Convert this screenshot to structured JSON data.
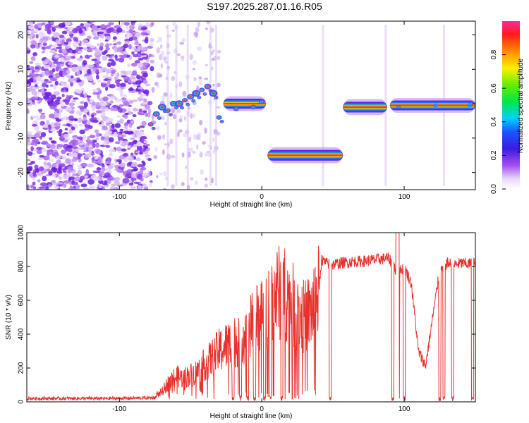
{
  "title": "S197.2025.287.01.16.R05",
  "chart_data": [
    {
      "type": "heatmap",
      "name": "spectrogram",
      "xlabel": "Height of straight line (km)",
      "ylabel": "Frequency (Hz)",
      "xlim": [
        -165,
        150
      ],
      "ylim": [
        -25,
        24
      ],
      "xticks": [
        -100,
        0,
        100
      ],
      "yticks": [
        -20,
        -10,
        0,
        10,
        20
      ],
      "features": [
        {
          "x": [
            -165,
            -80
          ],
          "type": "noise"
        },
        {
          "x": [
            -80,
            -30
          ],
          "points": [
            [
              -78,
              -6
            ],
            [
              -74,
              -3
            ],
            [
              -70,
              -1
            ],
            [
              -66,
              -2
            ],
            [
              -62,
              0
            ],
            [
              -58,
              0
            ],
            [
              -54,
              1
            ],
            [
              -50,
              2
            ],
            [
              -46,
              3
            ],
            [
              -42,
              4
            ],
            [
              -38,
              5
            ],
            [
              -34,
              3
            ],
            [
              -30,
              -4
            ]
          ]
        },
        {
          "x": [
            -27,
            3
          ],
          "y": 0
        },
        {
          "x": [
            4,
            57
          ],
          "y": -15
        },
        {
          "x": [
            57,
            88
          ],
          "y": -1
        },
        {
          "x": [
            90,
            150
          ],
          "y": -0.5
        }
      ],
      "colorbar": {
        "label": "Normalized spectral amplitude",
        "range": [
          0,
          1
        ],
        "ticks": [
          0.0,
          0.2,
          0.4,
          0.6,
          0.8
        ]
      }
    },
    {
      "type": "line",
      "name": "snr",
      "xlabel": "Height of straight line (km)",
      "ylabel": "SNR (10 * v/v)",
      "xlim": [
        -165,
        150
      ],
      "ylim": [
        0,
        1000
      ],
      "xticks": [
        -100,
        0,
        100
      ],
      "yticks": [
        0,
        200,
        400,
        600,
        800,
        1000
      ],
      "color": "#e8312c",
      "series": [
        {
          "name": "SNR",
          "x": [
            -165,
            -150,
            -130,
            -110,
            -90,
            -75,
            -70,
            -65,
            -60,
            -55,
            -50,
            -45,
            -40,
            -35,
            -30,
            -25,
            -20,
            -15,
            -10,
            -5,
            0,
            5,
            10,
            15,
            20,
            25,
            30,
            35,
            40,
            42,
            45,
            50,
            55,
            60,
            65,
            70,
            75,
            80,
            85,
            88,
            90,
            92,
            95,
            98,
            100,
            105,
            110,
            115,
            120,
            125,
            130,
            135,
            140,
            145,
            150
          ],
          "y": [
            20,
            20,
            20,
            20,
            22,
            25,
            60,
            120,
            150,
            140,
            160,
            180,
            220,
            260,
            300,
            330,
            350,
            380,
            420,
            470,
            520,
            600,
            640,
            650,
            600,
            520,
            500,
            540,
            650,
            840,
            820,
            810,
            820,
            825,
            830,
            830,
            835,
            840,
            845,
            850,
            840,
            820,
            750,
            780,
            800,
            700,
            300,
            210,
            500,
            780,
            820,
            810,
            820,
            815,
            820
          ]
        }
      ],
      "dropouts": [
        -20,
        -15,
        -10,
        -5,
        2,
        6,
        14,
        48,
        92,
        96,
        100,
        125,
        128,
        134,
        148
      ]
    }
  ]
}
